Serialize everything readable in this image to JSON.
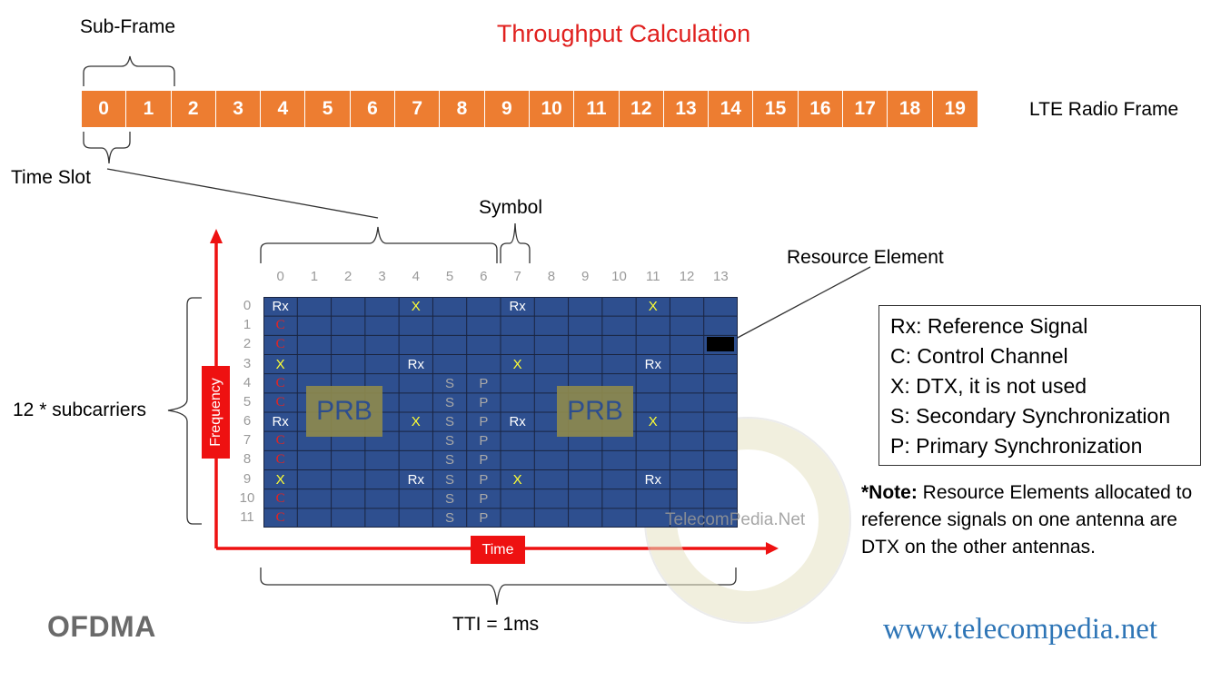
{
  "title": "Throughput Calculation",
  "labels": {
    "sub_frame": "Sub-Frame",
    "lte_radio_frame": "LTE Radio Frame",
    "time_slot": "Time Slot",
    "symbol": "Symbol",
    "resource_element": "Resource Element",
    "subcarriers": "12 * subcarriers",
    "frequency": "Frequency",
    "time": "Time",
    "tti": "TTI = 1ms",
    "ofdma": "OFDMA",
    "url": "www.telecompedia.net",
    "watermark": "TelecomPedia.Net",
    "prb": "PRB"
  },
  "frame_slots": [
    "0",
    "1",
    "2",
    "3",
    "4",
    "5",
    "6",
    "7",
    "8",
    "9",
    "10",
    "11",
    "12",
    "13",
    "14",
    "15",
    "16",
    "17",
    "18",
    "19"
  ],
  "grid": {
    "symbol_labels": [
      "0",
      "1",
      "2",
      "3",
      "4",
      "5",
      "6",
      "7",
      "8",
      "9",
      "10",
      "11",
      "12",
      "13"
    ],
    "subcarrier_labels": [
      "0",
      "1",
      "2",
      "3",
      "4",
      "5",
      "6",
      "7",
      "8",
      "9",
      "10",
      "11"
    ],
    "cells": [
      {
        "r": 0,
        "c": 0,
        "t": "Rx"
      },
      {
        "r": 0,
        "c": 4,
        "t": "X"
      },
      {
        "r": 0,
        "c": 7,
        "t": "Rx"
      },
      {
        "r": 0,
        "c": 11,
        "t": "X"
      },
      {
        "r": 1,
        "c": 0,
        "t": "C"
      },
      {
        "r": 2,
        "c": 0,
        "t": "C"
      },
      {
        "r": 3,
        "c": 0,
        "t": "X"
      },
      {
        "r": 3,
        "c": 4,
        "t": "Rx"
      },
      {
        "r": 3,
        "c": 7,
        "t": "X"
      },
      {
        "r": 3,
        "c": 11,
        "t": "Rx"
      },
      {
        "r": 4,
        "c": 0,
        "t": "C"
      },
      {
        "r": 4,
        "c": 5,
        "t": "S"
      },
      {
        "r": 4,
        "c": 6,
        "t": "P"
      },
      {
        "r": 5,
        "c": 0,
        "t": "C"
      },
      {
        "r": 5,
        "c": 5,
        "t": "S"
      },
      {
        "r": 5,
        "c": 6,
        "t": "P"
      },
      {
        "r": 6,
        "c": 0,
        "t": "Rx"
      },
      {
        "r": 6,
        "c": 4,
        "t": "X"
      },
      {
        "r": 6,
        "c": 5,
        "t": "S"
      },
      {
        "r": 6,
        "c": 6,
        "t": "P"
      },
      {
        "r": 6,
        "c": 7,
        "t": "Rx"
      },
      {
        "r": 6,
        "c": 11,
        "t": "X"
      },
      {
        "r": 7,
        "c": 0,
        "t": "C"
      },
      {
        "r": 7,
        "c": 5,
        "t": "S"
      },
      {
        "r": 7,
        "c": 6,
        "t": "P"
      },
      {
        "r": 8,
        "c": 0,
        "t": "C"
      },
      {
        "r": 8,
        "c": 5,
        "t": "S"
      },
      {
        "r": 8,
        "c": 6,
        "t": "P"
      },
      {
        "r": 9,
        "c": 0,
        "t": "X"
      },
      {
        "r": 9,
        "c": 4,
        "t": "Rx"
      },
      {
        "r": 9,
        "c": 5,
        "t": "S"
      },
      {
        "r": 9,
        "c": 6,
        "t": "P"
      },
      {
        "r": 9,
        "c": 7,
        "t": "X"
      },
      {
        "r": 9,
        "c": 11,
        "t": "Rx"
      },
      {
        "r": 10,
        "c": 0,
        "t": "C"
      },
      {
        "r": 10,
        "c": 5,
        "t": "S"
      },
      {
        "r": 10,
        "c": 6,
        "t": "P"
      },
      {
        "r": 11,
        "c": 0,
        "t": "C"
      },
      {
        "r": 11,
        "c": 5,
        "t": "S"
      },
      {
        "r": 11,
        "c": 6,
        "t": "P"
      }
    ],
    "highlighted_element": {
      "r": 2,
      "c": 13
    }
  },
  "legend": [
    "Rx: Reference Signal",
    "C: Control Channel",
    "X: DTX, it is not used",
    "S: Secondary Synchronization",
    "P: Primary Synchronization"
  ],
  "note": {
    "bold": "*Note:",
    "text": " Resource Elements allocated to reference signals on one antenna are DTX on the other antennas."
  },
  "colors": {
    "title": "#e0201e",
    "slot": "#ed7d31",
    "grid": "#2e4f8f",
    "axis": "#ee1111",
    "rx": "#ffffff",
    "x": "#ffff33",
    "c": "#e8231f",
    "sp": "#a8a8a8",
    "prb": "#8f8a4d"
  }
}
